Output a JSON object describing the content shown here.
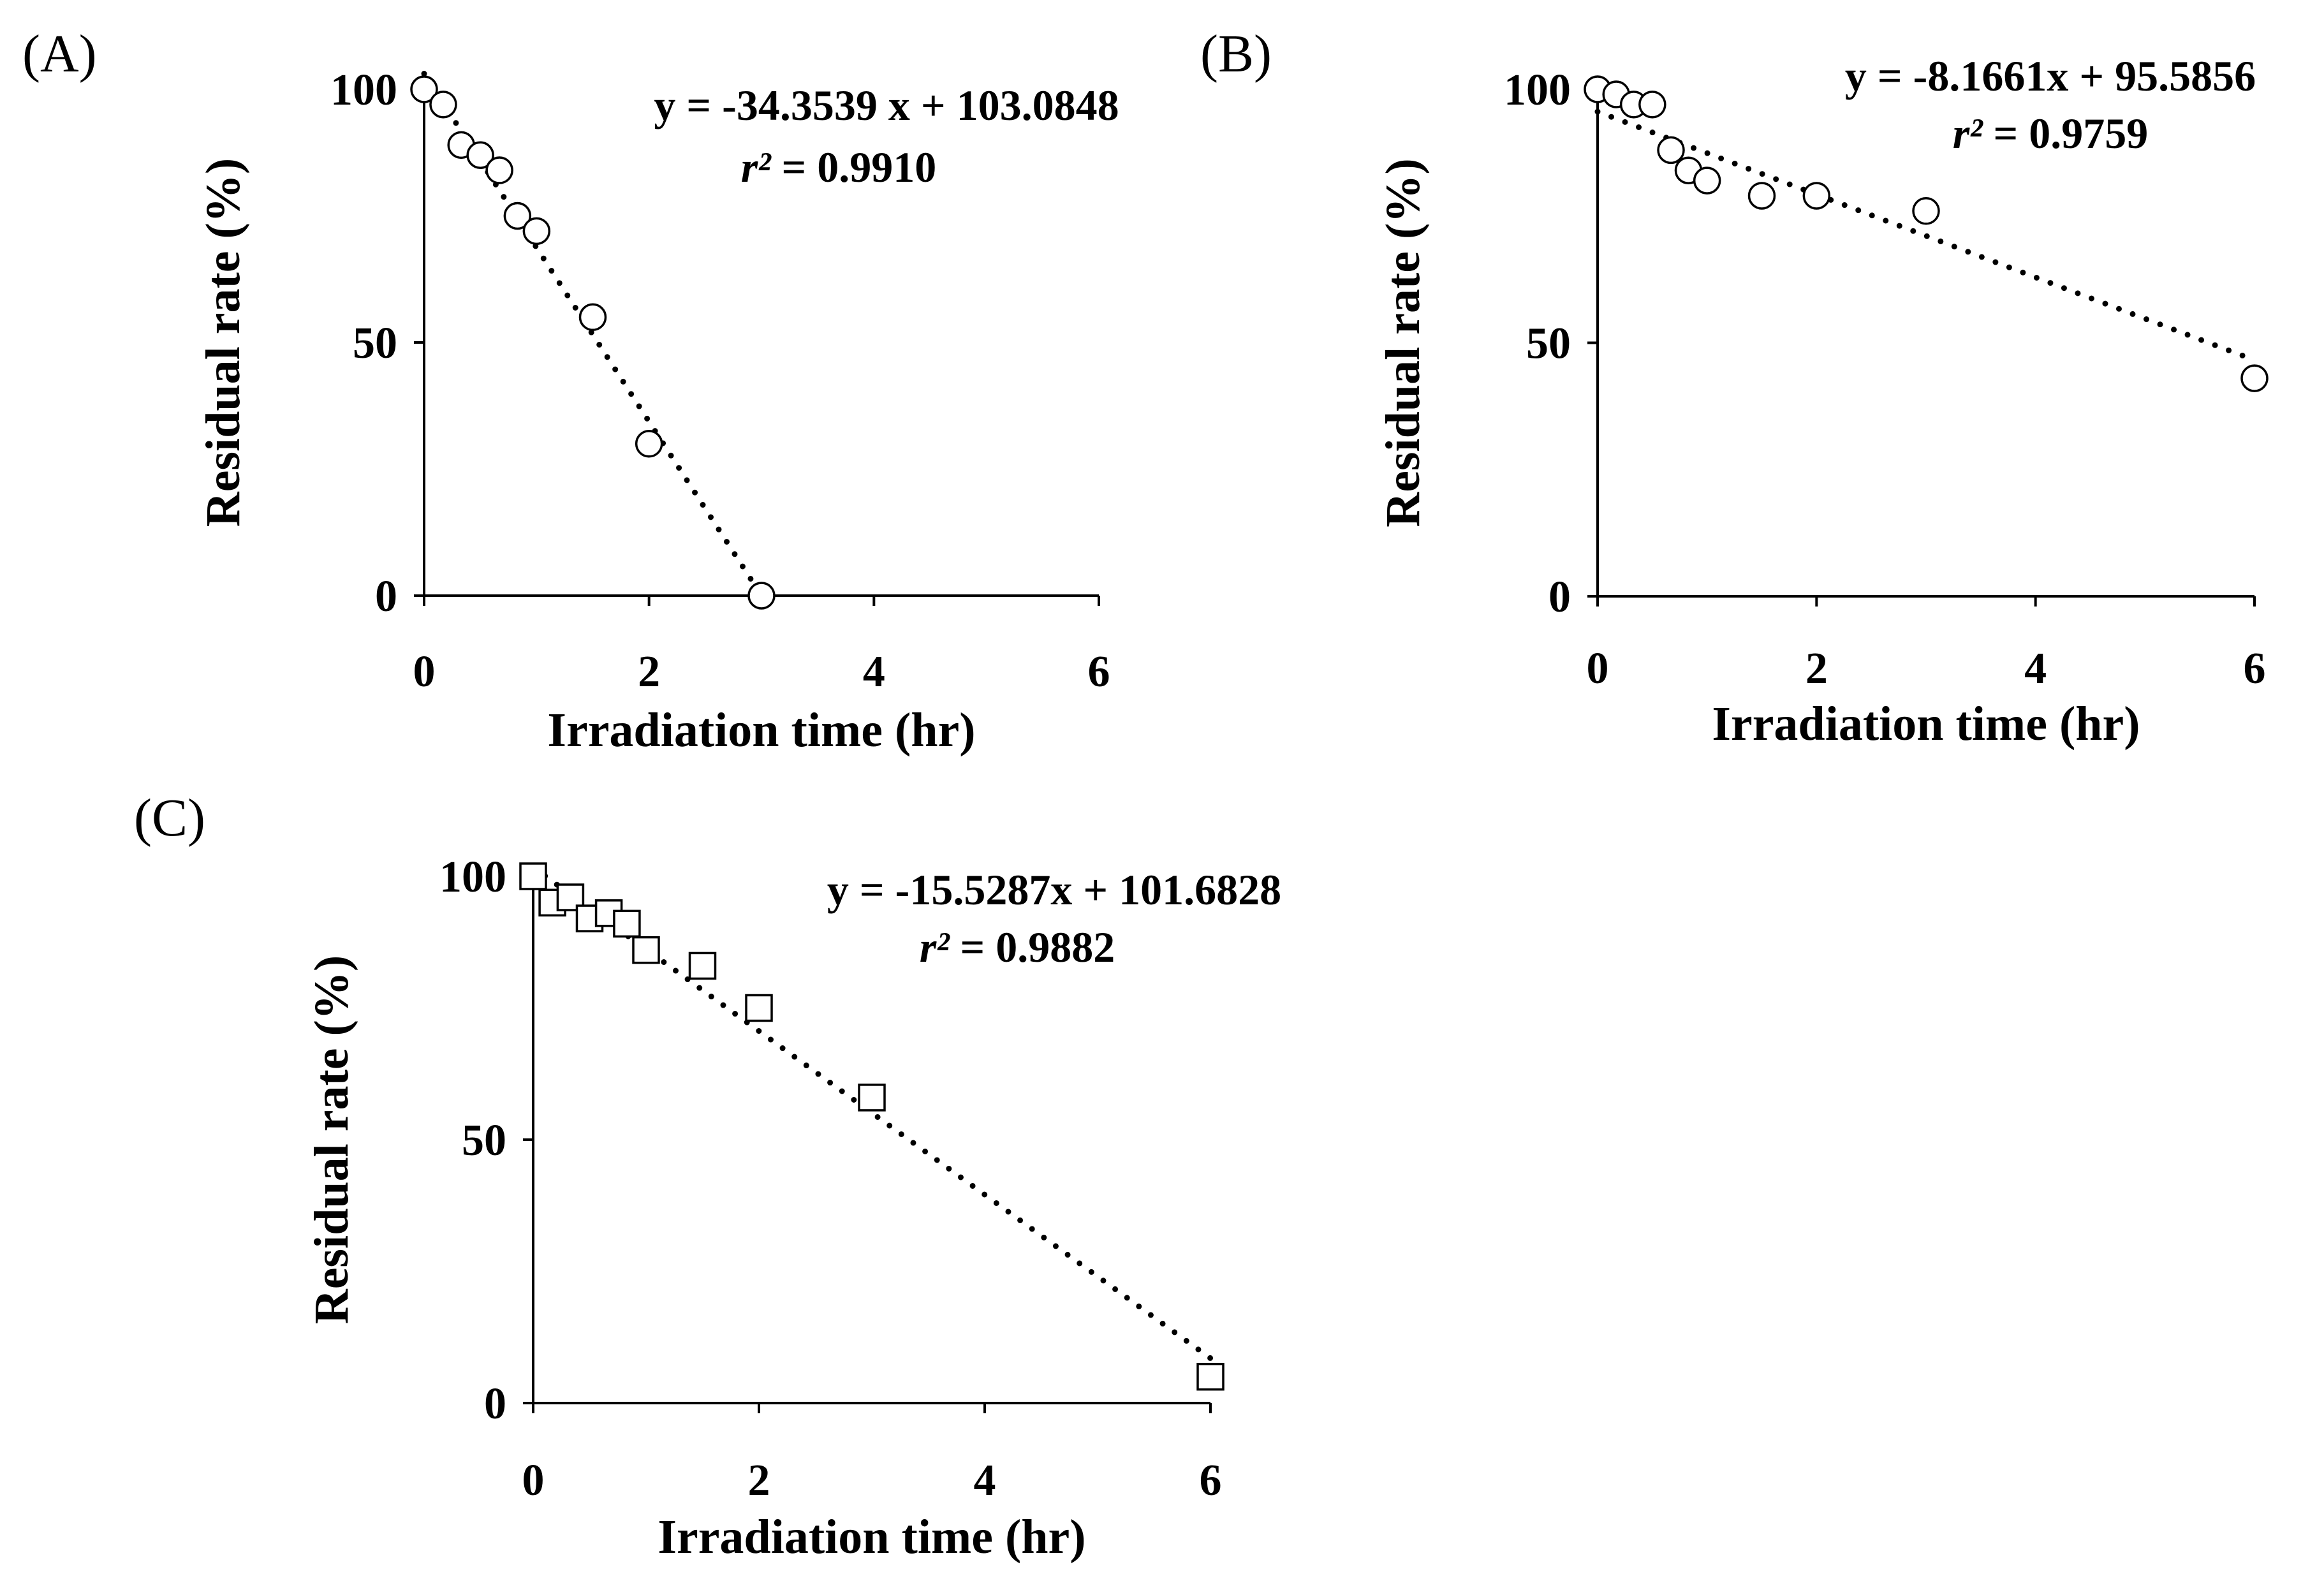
{
  "chart_data": [
    {
      "type": "scatter",
      "panel_label": "(A)",
      "xlabel": "Irradiation  time  (hr)",
      "ylabel": "Residual  rate  (%)",
      "xlim": [
        0,
        6
      ],
      "ylim": [
        0,
        100
      ],
      "xticks": [
        "0",
        "2",
        "4",
        "6"
      ],
      "yticks": [
        "0",
        "50",
        "100"
      ],
      "marker": "circle",
      "equation": "y = -34.3539 x + 103.0848",
      "r2_symbol": "r²",
      "r2_value": " = 0.9910",
      "trendline": {
        "slope": -34.3539,
        "intercept": 103.0848,
        "x_start": 0,
        "x_end": 3,
        "style": "dotted"
      },
      "series": [
        {
          "name": "Residual rate",
          "x": [
            0,
            0.17,
            0.33,
            0.5,
            0.67,
            0.83,
            1,
            1.5,
            2,
            3
          ],
          "y": [
            100,
            97,
            89,
            87,
            84,
            75,
            72,
            55,
            30,
            0
          ]
        }
      ]
    },
    {
      "type": "scatter",
      "panel_label": "(B)",
      "xlabel": "Irradiation  time  (hr)",
      "ylabel": "Residual  rate  (%)",
      "xlim": [
        0,
        6
      ],
      "ylim": [
        0,
        100
      ],
      "xticks": [
        "0",
        "2",
        "4",
        "6"
      ],
      "yticks": [
        "0",
        "50",
        "100"
      ],
      "marker": "circle",
      "equation": "y = -8.1661x + 95.5856",
      "r2_symbol": "r²",
      "r2_value": " = 0.9759",
      "trendline": {
        "slope": -8.1661,
        "intercept": 95.5856,
        "x_start": 0,
        "x_end": 6,
        "style": "dotted"
      },
      "series": [
        {
          "name": "Residual rate",
          "x": [
            0,
            0.17,
            0.33,
            0.5,
            0.67,
            0.83,
            1,
            1.5,
            2,
            3,
            6
          ],
          "y": [
            100,
            99,
            97,
            97,
            88,
            84,
            82,
            79,
            79,
            76,
            43
          ]
        }
      ]
    },
    {
      "type": "scatter",
      "panel_label": "(C)",
      "xlabel": "Irradiation  time  (hr)",
      "ylabel": "Residual  rate  (%)",
      "xlim": [
        0,
        6
      ],
      "ylim": [
        0,
        100
      ],
      "xticks": [
        "0",
        "2",
        "4",
        "6"
      ],
      "yticks": [
        "0",
        "50",
        "100"
      ],
      "marker": "square",
      "equation": "y = -15.5287x + 101.6828",
      "r2_symbol": "r²",
      "r2_value": " = 0.9882",
      "trendline": {
        "slope": -15.5287,
        "intercept": 101.6828,
        "x_start": 0,
        "x_end": 6,
        "style": "dotted"
      },
      "series": [
        {
          "name": "Residual rate",
          "x": [
            0,
            0.17,
            0.33,
            0.5,
            0.67,
            0.83,
            1,
            1.5,
            2,
            3,
            6
          ],
          "y": [
            100,
            95,
            96,
            92,
            93,
            91,
            86,
            83,
            75,
            58,
            5
          ]
        }
      ]
    }
  ]
}
